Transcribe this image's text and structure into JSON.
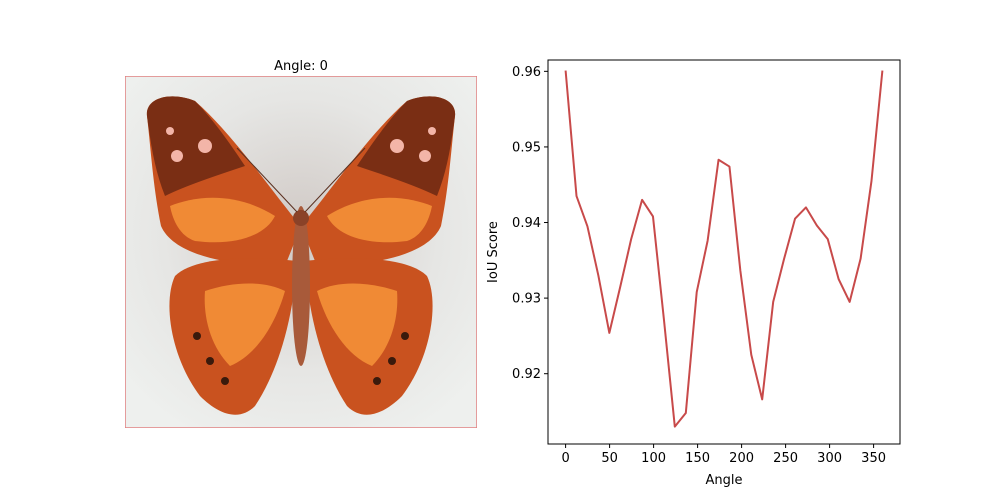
{
  "image_panel": {
    "title": "Angle: 0",
    "subject_icon": "butterfly-icon",
    "colors": {
      "background": "#eef0ee",
      "border": "#e08080",
      "wing_dark": "#7a2e14",
      "wing_mid": "#c9521f",
      "wing_light": "#f08a35",
      "spot_pink": "#f3b5a8",
      "spot_dark": "#3a1a0c",
      "body": "#a85a3a"
    }
  },
  "chart_data": {
    "type": "line",
    "title": "",
    "xlabel": "Angle",
    "ylabel": "IoU Score",
    "xlim": [
      -20,
      380
    ],
    "ylim": [
      0.9107,
      0.9615
    ],
    "x_ticks": [
      0,
      50,
      100,
      150,
      200,
      250,
      300,
      350
    ],
    "y_ticks": [
      0.92,
      0.93,
      0.94,
      0.95,
      0.96
    ],
    "y_tick_labels": [
      "0.92",
      "0.93",
      "0.94",
      "0.95",
      "0.96"
    ],
    "grid": false,
    "line_color": "#c84a4a",
    "series": [
      {
        "x": [
          0,
          12.4,
          24.8,
          37.2,
          49.7,
          62.1,
          74.5,
          86.9,
          99.3,
          111.7,
          124.1,
          136.6,
          149,
          161.4,
          173.8,
          186.2,
          198.6,
          211,
          223.4,
          235.9,
          248.3,
          260.7,
          273.1,
          285.5,
          297.9,
          310.3,
          322.8,
          335.2,
          347.6,
          360
        ],
        "values": [
          0.9601,
          0.9435,
          0.9395,
          0.933,
          0.9254,
          0.9315,
          0.9378,
          0.943,
          0.9408,
          0.9272,
          0.913,
          0.9148,
          0.9308,
          0.9376,
          0.9483,
          0.9474,
          0.9336,
          0.9225,
          0.9166,
          0.9295,
          0.9352,
          0.9405,
          0.942,
          0.9396,
          0.9378,
          0.9325,
          0.9295,
          0.9352,
          0.9455,
          0.9601
        ]
      }
    ]
  }
}
